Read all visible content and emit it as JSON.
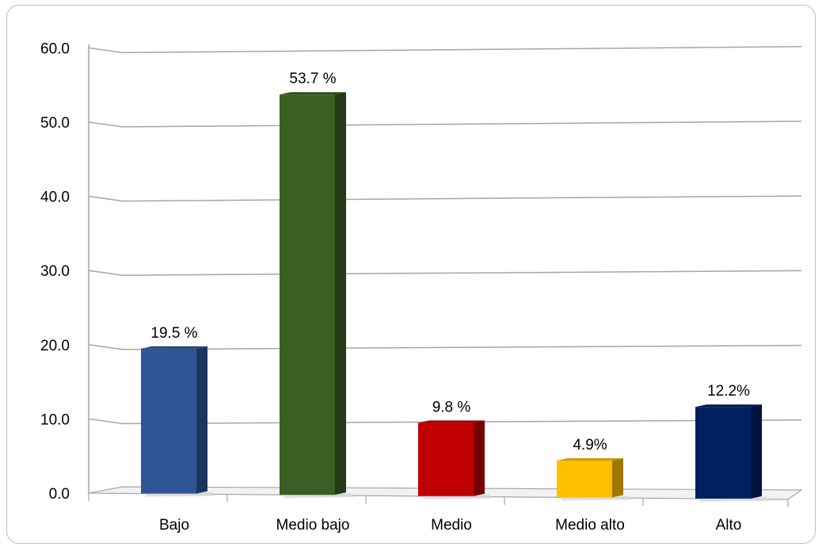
{
  "chart_data": {
    "type": "bar",
    "categories": [
      "Bajo",
      "Medio bajo",
      "Medio",
      "Medio alto",
      "Alto"
    ],
    "values": [
      19.5,
      53.7,
      9.8,
      4.9,
      12.2
    ],
    "data_labels": [
      "19.5 %",
      "53.7 %",
      "9.8 %",
      "4.9%",
      "12.2%"
    ],
    "colors": [
      "#2f5597",
      "#3b5e24",
      "#c00000",
      "#ffc000",
      "#002060"
    ],
    "y_ticks": [
      "0.0",
      "10.0",
      "20.0",
      "30.0",
      "40.0",
      "50.0",
      "60.0"
    ],
    "ylim": [
      0,
      60
    ],
    "grid": true,
    "legend": "none",
    "title": "",
    "xlabel": "",
    "ylabel": ""
  }
}
